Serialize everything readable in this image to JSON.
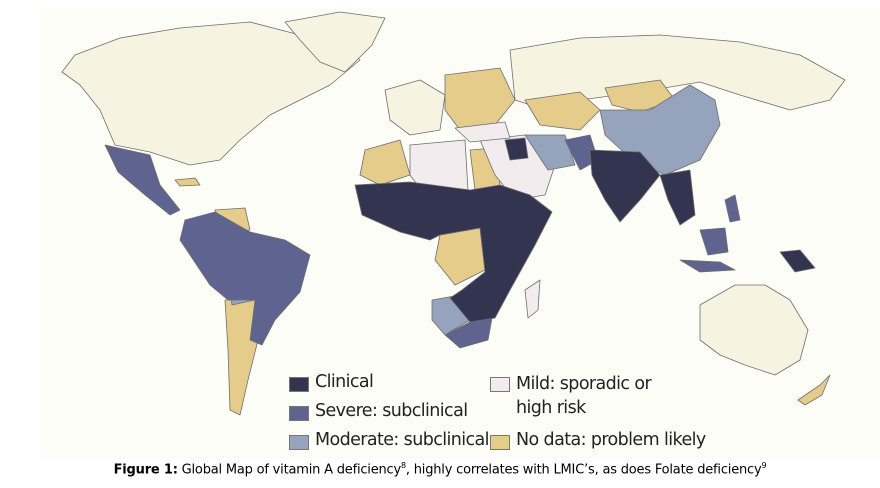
{
  "figure": {
    "caption_label": "Figure 1:",
    "caption_text_1": " Global Map of vitamin A deficiency",
    "caption_sup_1": "8",
    "caption_text_2": ", highly correlates with LMIC’s, as does Folate deficiency",
    "caption_sup_2": "9"
  },
  "legend": {
    "items": [
      {
        "label": "Clinical",
        "color": "#33344f"
      },
      {
        "label": "Severe: subclinical",
        "color": "#5f6390"
      },
      {
        "label": "Moderate: subclinical",
        "color": "#95a3bd"
      },
      {
        "label": "Mild: sporadic or",
        "label_line2": "high risk",
        "color": "#f3ecee"
      },
      {
        "label": "No data: problem likely",
        "color": "#e5cc8a"
      }
    ]
  },
  "colors": {
    "no_deficiency_land": "#f6f3e0",
    "ocean": "#fdfdf8",
    "border": "#6e6e6e"
  }
}
